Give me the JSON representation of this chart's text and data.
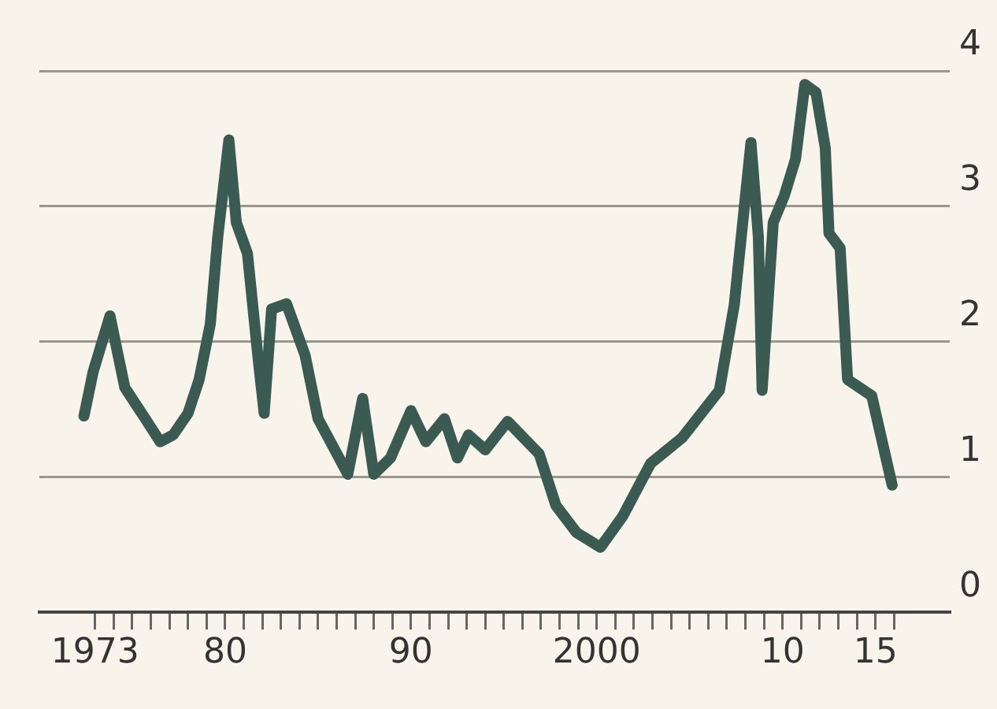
{
  "chart_data": {
    "type": "line",
    "x": [
      1972.4,
      1972.9,
      1973.8,
      1974.1,
      1974.6,
      1975.7,
      1976.5,
      1977.2,
      1978.0,
      1978.6,
      1979.2,
      1979.6,
      1980.2,
      1980.6,
      1981.2,
      1981.8,
      1982.1,
      1982.5,
      1983.3,
      1984.3,
      1985.0,
      1985.9,
      1986.6,
      1987.4,
      1988.0,
      1988.9,
      1990.0,
      1990.8,
      1991.8,
      1992.5,
      1993.1,
      1994.0,
      1995.2,
      1996.9,
      1997.8,
      1998.9,
      2000.2,
      2001.4,
      2002.9,
      2004.6,
      2006.6,
      2007.4,
      2008.3,
      2008.7,
      2008.9,
      2009.5,
      2010.1,
      2010.7,
      2011.2,
      2011.8,
      2012.3,
      2012.5,
      2013.1,
      2013.5,
      2014.8,
      2015.9
    ],
    "series": [
      {
        "color": "#3b5a52",
        "values": [
          1.45,
          1.78,
          2.19,
          1.99,
          1.66,
          1.43,
          1.26,
          1.31,
          1.47,
          1.72,
          2.13,
          2.77,
          3.49,
          2.88,
          2.65,
          1.84,
          1.47,
          2.24,
          2.28,
          1.9,
          1.43,
          1.2,
          1.02,
          1.58,
          1.02,
          1.14,
          1.49,
          1.26,
          1.43,
          1.14,
          1.31,
          1.2,
          1.41,
          1.17,
          0.79,
          0.59,
          0.48,
          0.71,
          1.1,
          1.29,
          1.64,
          2.27,
          3.47,
          2.77,
          1.64,
          2.88,
          3.08,
          3.35,
          3.9,
          3.84,
          3.43,
          2.8,
          2.69,
          1.72,
          1.6,
          0.94
        ]
      }
    ],
    "xlim": [
      1970,
      2019
    ],
    "xticks": [
      1973,
      {
        "value": 1974,
        "label": null
      },
      {
        "value": 1975,
        "label": null
      },
      {
        "value": 1976,
        "label": null
      },
      {
        "value": 1977,
        "label": null
      },
      {
        "value": 1978,
        "label": null
      },
      {
        "value": 1979,
        "label": null
      },
      {
        "value": 1980,
        "label": "80"
      },
      {
        "value": 1981,
        "label": null
      },
      {
        "value": 1982,
        "label": null
      },
      {
        "value": 1983,
        "label": null
      },
      {
        "value": 1984,
        "label": null
      },
      {
        "value": 1985,
        "label": null
      },
      {
        "value": 1986,
        "label": null
      },
      {
        "value": 1987,
        "label": null
      },
      {
        "value": 1988,
        "label": null
      },
      {
        "value": 1989,
        "label": null
      },
      {
        "value": 1990,
        "label": "90"
      },
      {
        "value": 1991,
        "label": null
      },
      {
        "value": 1992,
        "label": null
      },
      {
        "value": 1993,
        "label": null
      },
      {
        "value": 1994,
        "label": null
      },
      {
        "value": 1995,
        "label": null
      },
      {
        "value": 1996,
        "label": null
      },
      {
        "value": 1997,
        "label": null
      },
      {
        "value": 1998,
        "label": null
      },
      {
        "value": 1999,
        "label": null
      },
      2000,
      {
        "value": 2001,
        "label": null
      },
      {
        "value": 2002,
        "label": null
      },
      {
        "value": 2003,
        "label": null
      },
      {
        "value": 2004,
        "label": null
      },
      {
        "value": 2005,
        "label": null
      },
      {
        "value": 2006,
        "label": null
      },
      {
        "value": 2007,
        "label": null
      },
      {
        "value": 2008,
        "label": null
      },
      {
        "value": 2009,
        "label": null
      },
      {
        "value": 2010,
        "label": "10"
      },
      {
        "value": 2011,
        "label": null
      },
      {
        "value": 2012,
        "label": null
      },
      {
        "value": 2013,
        "label": null
      },
      {
        "value": 2014,
        "label": null
      },
      {
        "value": 2015,
        "label": "15"
      },
      {
        "value": 2016,
        "label": null
      }
    ],
    "ylim": [
      0,
      4
    ],
    "yticks": [
      0,
      1,
      2,
      3,
      4
    ],
    "grid": "y",
    "legend": false,
    "marker": "none"
  }
}
